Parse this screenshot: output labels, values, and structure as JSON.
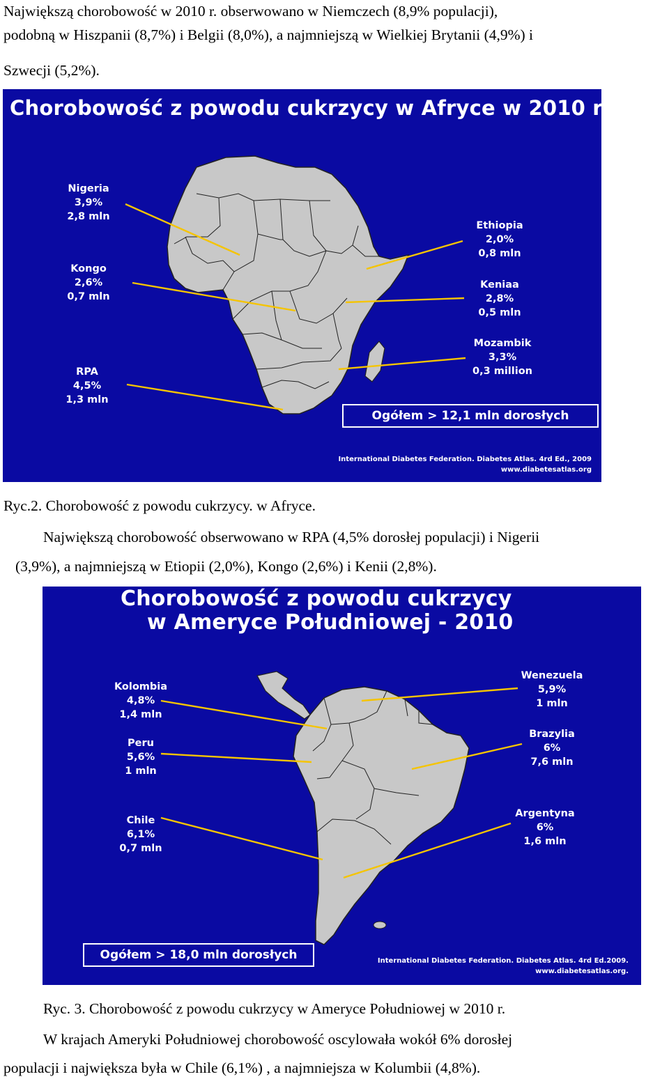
{
  "intro": {
    "line1": "Największą chorobowość w 2010 r. obserwowano w Niemczech (8,9% populacji),",
    "line2": "podobną w Hiszpanii (8,7%) i Belgii (8,0%), a  najmniejszą w Wielkiej Brytanii (4,9%) i",
    "line3": "Szwecji (5,2%)."
  },
  "africa": {
    "title": "Chorobowość z powodu cukrzycy w Afryce w 2010 r",
    "labels": [
      {
        "id": "nigeria",
        "lines": [
          "Nigeria",
          "3,9%",
          "2,8 mln"
        ]
      },
      {
        "id": "kongo",
        "lines": [
          "Kongo",
          "2,6%",
          "0,7 mln"
        ]
      },
      {
        "id": "rpa",
        "lines": [
          "RPA",
          "4,5%",
          "1,3 mln"
        ]
      },
      {
        "id": "ethiopia",
        "lines": [
          "Ethiopia",
          "2,0%",
          "0,8 mln"
        ]
      },
      {
        "id": "kenia",
        "lines": [
          "Keniaa",
          "2,8%",
          "0,5 mln"
        ]
      },
      {
        "id": "mozambik",
        "lines": [
          "Mozambik",
          "3,3%",
          "0,3 million"
        ]
      }
    ],
    "total": "Ogółem > 12,1 mln dorosłych",
    "source_line1": "International Diabetes Federation. Diabetes Atlas. 4rd Ed., 2009",
    "source_line2": "www.diabetesatlas.org",
    "colors": {
      "background": "#0a0aa2",
      "land": "#c8c8c8",
      "pointer": "#f5c400"
    }
  },
  "caption_africa": "Ryc.2.  Chorobowość z powodu cukrzycy. w Afryce.",
  "para_africa": {
    "line1": "Największą chorobowość obserwowano w RPA (4,5% dorosłej  populacji) i Nigerii",
    "line2": "(3,9%), a najmniejszą w  Etiopii  (2,0%), Kongo (2,6%) i Kenii (2,8%)."
  },
  "south_america": {
    "title_line1": "Chorobowość  z powodu cukrzycy",
    "title_line2": "w Ameryce Południowej - 2010",
    "labels": [
      {
        "id": "kolumbia",
        "lines": [
          "Kolombia",
          "4,8%",
          "1,4 mln"
        ]
      },
      {
        "id": "peru",
        "lines": [
          "Peru",
          "5,6%",
          "1 mln"
        ]
      },
      {
        "id": "chile",
        "lines": [
          "Chile",
          "6,1%",
          "0,7 mln"
        ]
      },
      {
        "id": "wenezuela",
        "lines": [
          "Wenezuela",
          "5,9%",
          "1 mln"
        ]
      },
      {
        "id": "brazylia",
        "lines": [
          "Brazylia",
          "6%",
          "7,6 mln"
        ]
      },
      {
        "id": "argentyna",
        "lines": [
          "Argentyna",
          "6%",
          "1,6 mln"
        ]
      }
    ],
    "total": "Ogółem > 18,0 mln dorosłych",
    "source_line1": "International Diabetes Federation. Diabetes Atlas. 4rd Ed.2009.",
    "source_line2": "www.diabetesatlas.org.",
    "colors": {
      "background": "#0a0aa2",
      "land": "#c8c8c8",
      "pointer": "#f5c400"
    }
  },
  "caption_sa": "Ryc. 3. Chorobowość z powodu cukrzycy w Ameryce Południowej w 2010 r.",
  "para_sa": {
    "line1": "W krajach Ameryki Południowej  chorobowość  oscylowała wokół 6% dorosłej",
    "line2": "populacji i  największa była w Chile (6,1%) , a najmniejsza  w  Kolumbii (4,8%)."
  }
}
